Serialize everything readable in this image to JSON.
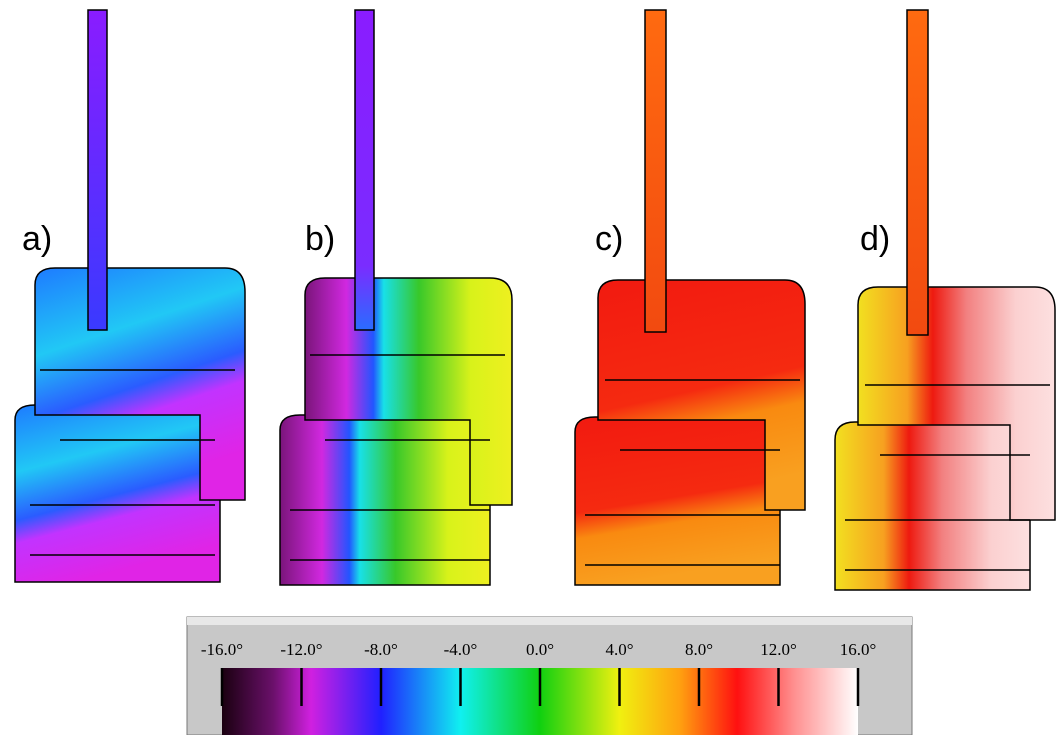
{
  "panels": [
    {
      "label": "a)"
    },
    {
      "label": "b)"
    },
    {
      "label": "c)"
    },
    {
      "label": "d)"
    }
  ],
  "colorbar": {
    "ticks": [
      {
        "value": -16,
        "label": "-16.0°"
      },
      {
        "value": -12,
        "label": "-12.0°"
      },
      {
        "value": -8,
        "label": "-8.0°"
      },
      {
        "value": -4,
        "label": "-4.0°"
      },
      {
        "value": 0,
        "label": "0.0°"
      },
      {
        "value": 4,
        "label": "4.0°"
      },
      {
        "value": 8,
        "label": "8.0°"
      },
      {
        "value": 12,
        "label": "12.0°"
      },
      {
        "value": 16,
        "label": "16.0°"
      }
    ]
  }
}
